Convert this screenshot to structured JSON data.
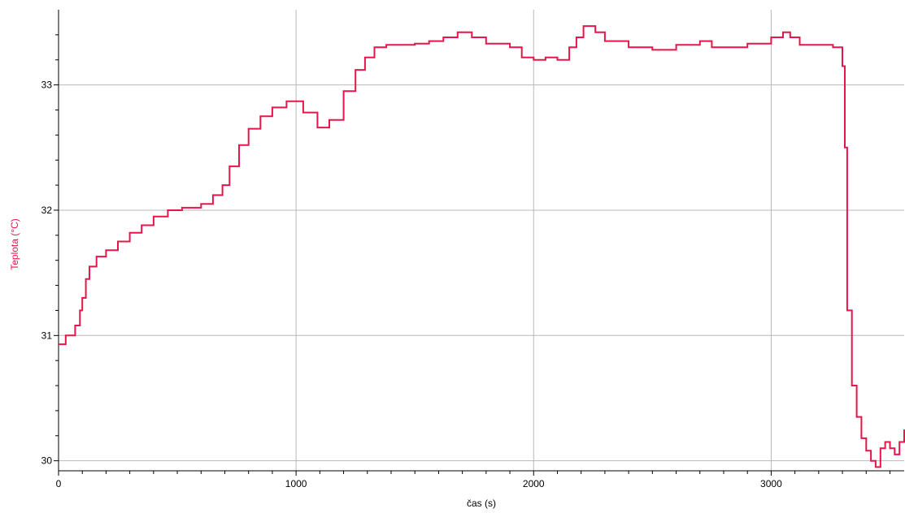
{
  "colors": {
    "series": "#e8154a",
    "ylabel": "#e8154a",
    "grid_major": "#b8b8b8",
    "grid_minor": "#dcdcdc",
    "axis": "#000000",
    "text": "#000000"
  },
  "chart_data": {
    "type": "line",
    "title": "",
    "xlabel": "čas (s)",
    "ylabel": "Teplota (°C)",
    "xlim": [
      0,
      3560
    ],
    "ylim": [
      29.92,
      33.6
    ],
    "xticks": [
      0,
      1000,
      2000,
      3000
    ],
    "xtick_labels": [
      "0",
      "1000",
      "2000",
      "3000"
    ],
    "yticks": [
      30,
      31,
      32,
      33
    ],
    "ytick_labels": [
      "30",
      "31",
      "32",
      "33"
    ],
    "grid": true,
    "legend": "none",
    "series": [
      {
        "step": true,
        "x": [
          0,
          30,
          70,
          90,
          100,
          115,
          130,
          160,
          200,
          250,
          300,
          350,
          400,
          460,
          520,
          600,
          650,
          690,
          720,
          760,
          800,
          850,
          900,
          960,
          1030,
          1090,
          1140,
          1200,
          1250,
          1290,
          1330,
          1380,
          1440,
          1500,
          1560,
          1620,
          1680,
          1740,
          1800,
          1900,
          1950,
          2000,
          2050,
          2100,
          2150,
          2180,
          2210,
          2260,
          2300,
          2400,
          2500,
          2600,
          2700,
          2750,
          2900,
          3000,
          3050,
          3080,
          3120,
          3200,
          3260,
          3300,
          3310,
          3320,
          3340,
          3360,
          3380,
          3400,
          3420,
          3440,
          3460,
          3480,
          3500,
          3520,
          3540,
          3560
        ],
        "y": [
          30.93,
          31.0,
          31.08,
          31.2,
          31.3,
          31.45,
          31.55,
          31.63,
          31.68,
          31.75,
          31.82,
          31.88,
          31.95,
          32.0,
          32.02,
          32.05,
          32.12,
          32.2,
          32.35,
          32.52,
          32.65,
          32.75,
          32.82,
          32.87,
          32.78,
          32.66,
          32.72,
          32.95,
          33.12,
          33.22,
          33.3,
          33.32,
          33.32,
          33.33,
          33.35,
          33.38,
          33.42,
          33.38,
          33.33,
          33.3,
          33.22,
          33.2,
          33.22,
          33.2,
          33.3,
          33.38,
          33.47,
          33.42,
          33.35,
          33.3,
          33.28,
          33.32,
          33.35,
          33.3,
          33.33,
          33.38,
          33.42,
          33.38,
          33.32,
          33.32,
          33.3,
          33.15,
          32.5,
          31.2,
          30.6,
          30.35,
          30.18,
          30.08,
          30.0,
          29.95,
          30.1,
          30.15,
          30.1,
          30.05,
          30.15,
          30.25
        ]
      }
    ]
  }
}
